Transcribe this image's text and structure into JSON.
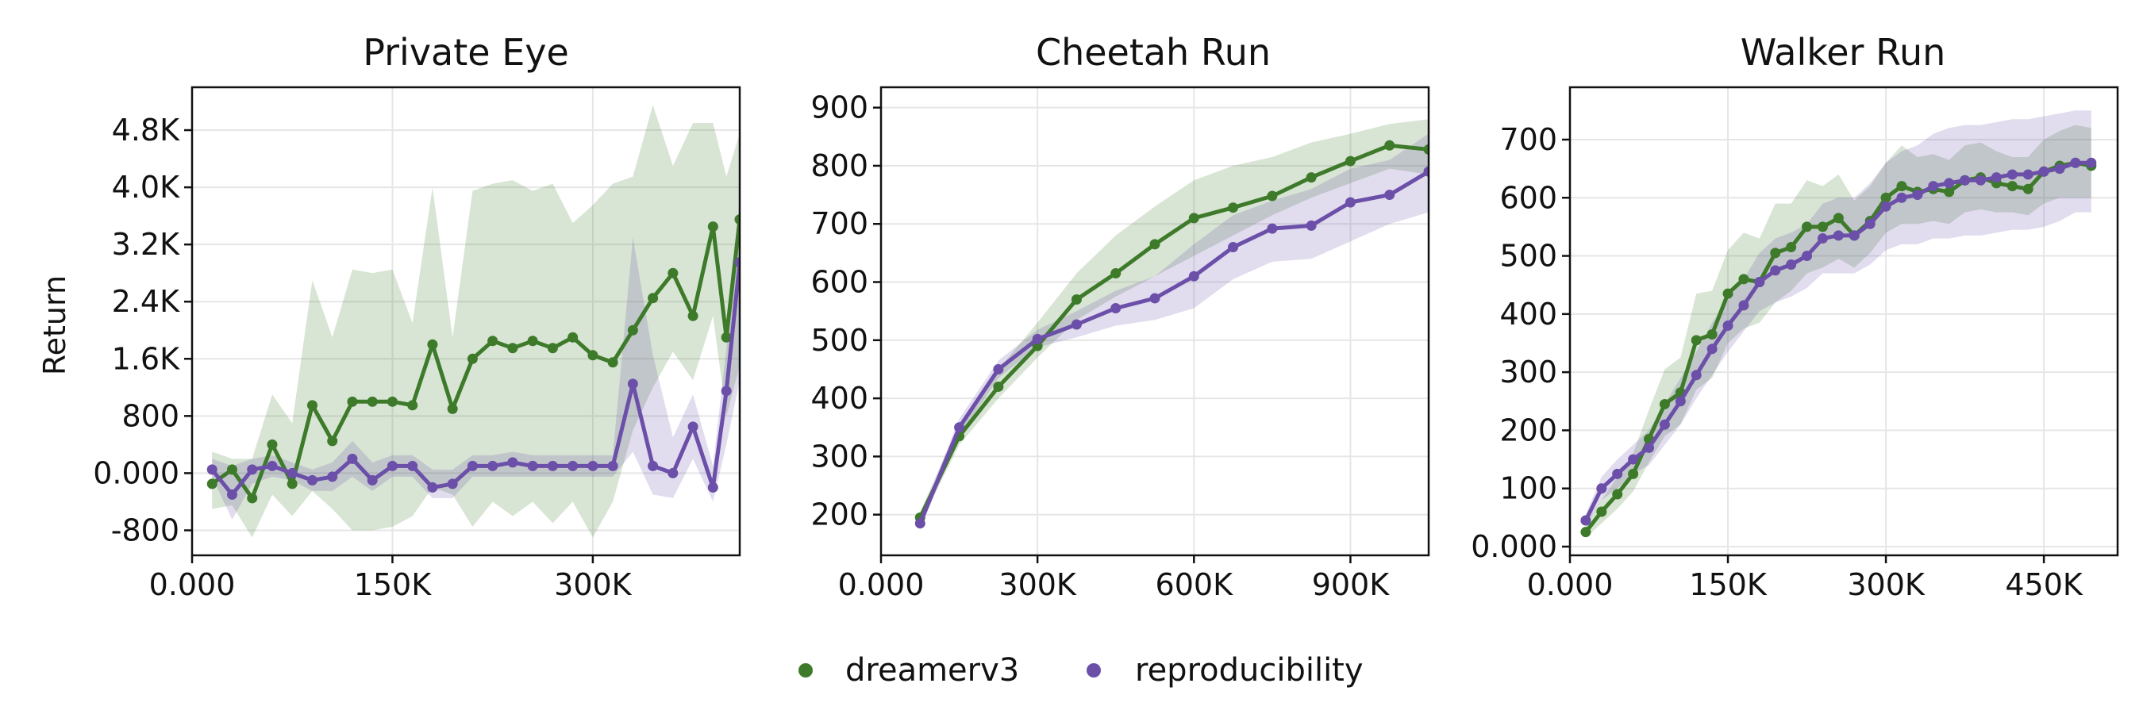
{
  "figure": {
    "colors": {
      "dreamerv3": "#3d7a2a",
      "reproducibility": "#6b4fa8"
    },
    "legend": {
      "placement": "bottom-center",
      "items": [
        {
          "label": "dreamerv3",
          "color": "#3d7a2a"
        },
        {
          "label": "reproducibility",
          "color": "#6b4fa8"
        }
      ]
    }
  },
  "chart_data": [
    {
      "type": "line",
      "title": "Private Eye",
      "ylabel": "Return",
      "xlim": [
        0,
        410000
      ],
      "ylim": [
        -1150,
        5400
      ],
      "xticks": [
        0,
        150000,
        300000
      ],
      "xtick_labels": [
        "0.000",
        "150K",
        "300K"
      ],
      "yticks": [
        -800,
        0,
        800,
        1600,
        2400,
        3200,
        4000,
        4800
      ],
      "ytick_labels": [
        "-800",
        "0.000",
        "800",
        "1.6K",
        "2.4K",
        "3.2K",
        "4.0K",
        "4.8K"
      ],
      "grid": true,
      "x": [
        15000,
        30000,
        45000,
        60000,
        75000,
        90000,
        105000,
        120000,
        135000,
        150000,
        165000,
        180000,
        195000,
        210000,
        225000,
        240000,
        255000,
        270000,
        285000,
        300000,
        315000,
        330000,
        345000,
        360000,
        375000,
        390000,
        405000
      ],
      "series": [
        {
          "name": "dreamerv3",
          "values": [
            -150,
            50,
            -350,
            400,
            -150,
            950,
            450,
            1000,
            1000,
            1000,
            950,
            1800,
            900,
            1600,
            1850,
            1750,
            1850,
            1750,
            1900,
            1650,
            1550,
            2000,
            2450,
            2800,
            2200,
            3450,
            1900,
            3550
          ],
          "x": [
            15000,
            30000,
            45000,
            60000,
            75000,
            90000,
            105000,
            120000,
            135000,
            150000,
            165000,
            180000,
            195000,
            210000,
            225000,
            240000,
            255000,
            270000,
            285000,
            300000,
            315000,
            330000,
            345000,
            360000,
            375000,
            390000,
            400000,
            410000
          ],
          "lower": [
            -500,
            -450,
            -900,
            -300,
            -600,
            -250,
            -500,
            -800,
            -800,
            -750,
            -600,
            -200,
            -300,
            -750,
            -400,
            -600,
            -400,
            -700,
            -400,
            -900,
            -400,
            600,
            1200,
            1700,
            1300,
            2200,
            800,
            1500
          ],
          "upper": [
            300,
            200,
            200,
            1100,
            700,
            2700,
            1900,
            2850,
            2800,
            2850,
            2100,
            4000,
            1900,
            3950,
            4050,
            4100,
            3950,
            4050,
            3500,
            3750,
            4050,
            4150,
            5150,
            4300,
            4900,
            4900,
            4150,
            4750
          ]
        },
        {
          "name": "reproducibility",
          "values": [
            50,
            -300,
            50,
            100,
            0,
            -100,
            -50,
            200,
            -100,
            100,
            100,
            -200,
            -150,
            100,
            100,
            150,
            100,
            100,
            100,
            100,
            100,
            1250,
            100,
            0,
            650,
            -200,
            1150,
            2950
          ],
          "x": [
            15000,
            30000,
            45000,
            60000,
            75000,
            90000,
            105000,
            120000,
            135000,
            150000,
            165000,
            180000,
            195000,
            210000,
            225000,
            240000,
            255000,
            270000,
            285000,
            300000,
            315000,
            330000,
            345000,
            360000,
            375000,
            390000,
            400000,
            410000
          ],
          "lower": [
            -50,
            -650,
            -150,
            -50,
            -100,
            -250,
            -250,
            -50,
            -250,
            -50,
            -50,
            -350,
            -350,
            -50,
            -50,
            -50,
            -50,
            -50,
            -50,
            -50,
            -50,
            300,
            -300,
            -350,
            200,
            -400,
            400,
            1300
          ],
          "upper": [
            200,
            100,
            200,
            250,
            150,
            50,
            150,
            450,
            150,
            250,
            250,
            50,
            50,
            250,
            250,
            300,
            250,
            250,
            250,
            250,
            250,
            3300,
            1650,
            500,
            1100,
            100,
            1750,
            3850
          ]
        }
      ]
    },
    {
      "type": "line",
      "title": "Cheetah Run",
      "xlim": [
        0,
        1050000
      ],
      "ylim": [
        130,
        935
      ],
      "xticks": [
        0,
        300000,
        600000,
        900000
      ],
      "xtick_labels": [
        "0.000",
        "300K",
        "600K",
        "900K"
      ],
      "yticks": [
        200,
        300,
        400,
        500,
        600,
        700,
        800,
        900
      ],
      "ytick_labels": [
        "200",
        "300",
        "400",
        "500",
        "600",
        "700",
        "800",
        "900"
      ],
      "grid": true,
      "series": [
        {
          "name": "dreamerv3",
          "x": [
            75000,
            150000,
            225000,
            300000,
            375000,
            450000,
            525000,
            600000,
            675000,
            750000,
            825000,
            900000,
            975000,
            1050000
          ],
          "values": [
            195,
            335,
            420,
            490,
            570,
            615,
            665,
            710,
            728,
            748,
            780,
            808,
            835,
            828
          ],
          "lower": [
            185,
            320,
            400,
            470,
            535,
            575,
            610,
            645,
            680,
            715,
            745,
            770,
            795,
            785
          ],
          "upper": [
            205,
            355,
            450,
            530,
            615,
            680,
            730,
            775,
            800,
            815,
            840,
            855,
            872,
            880
          ]
        },
        {
          "name": "reproducibility",
          "x": [
            75000,
            150000,
            225000,
            300000,
            375000,
            450000,
            525000,
            600000,
            675000,
            750000,
            825000,
            900000,
            975000,
            1050000
          ],
          "values": [
            185,
            350,
            450,
            502,
            527,
            555,
            572,
            610,
            660,
            692,
            697,
            737,
            750,
            790
          ],
          "lower": [
            175,
            335,
            435,
            488,
            505,
            525,
            535,
            555,
            605,
            635,
            640,
            670,
            700,
            720
          ],
          "upper": [
            195,
            365,
            465,
            518,
            550,
            585,
            610,
            665,
            715,
            740,
            760,
            795,
            810,
            855
          ]
        }
      ]
    },
    {
      "type": "line",
      "title": "Walker Run",
      "xlim": [
        0,
        520000
      ],
      "ylim": [
        -15,
        790
      ],
      "xticks": [
        0,
        150000,
        300000,
        450000
      ],
      "xtick_labels": [
        "0.000",
        "150K",
        "300K",
        "450K"
      ],
      "yticks": [
        0,
        100,
        200,
        300,
        400,
        500,
        600,
        700
      ],
      "ytick_labels": [
        "0.000",
        "100",
        "200",
        "300",
        "400",
        "500",
        "600",
        "700"
      ],
      "grid": true,
      "series": [
        {
          "name": "dreamerv3",
          "x": [
            15000,
            30000,
            45000,
            60000,
            75000,
            90000,
            105000,
            120000,
            135000,
            150000,
            165000,
            180000,
            195000,
            210000,
            225000,
            240000,
            255000,
            270000,
            285000,
            300000,
            315000,
            330000,
            345000,
            360000,
            375000,
            390000,
            405000,
            420000,
            435000,
            450000,
            465000,
            480000,
            495000
          ],
          "values": [
            25,
            60,
            90,
            125,
            185,
            245,
            265,
            355,
            365,
            435,
            460,
            455,
            505,
            515,
            550,
            550,
            565,
            535,
            560,
            600,
            620,
            610,
            615,
            610,
            630,
            635,
            625,
            620,
            615,
            645,
            655,
            660,
            655
          ],
          "lower": [
            15,
            40,
            65,
            95,
            145,
            190,
            210,
            270,
            290,
            350,
            375,
            385,
            420,
            440,
            470,
            480,
            495,
            480,
            505,
            540,
            555,
            555,
            560,
            555,
            575,
            580,
            575,
            575,
            570,
            590,
            600,
            600,
            600
          ],
          "upper": [
            40,
            80,
            120,
            160,
            235,
            305,
            325,
            435,
            440,
            510,
            540,
            530,
            590,
            590,
            630,
            620,
            640,
            595,
            620,
            660,
            690,
            670,
            675,
            665,
            690,
            695,
            680,
            670,
            670,
            700,
            715,
            725,
            720
          ]
        },
        {
          "name": "reproducibility",
          "x": [
            15000,
            30000,
            45000,
            60000,
            75000,
            90000,
            105000,
            120000,
            135000,
            150000,
            165000,
            180000,
            195000,
            210000,
            225000,
            240000,
            255000,
            270000,
            285000,
            300000,
            315000,
            330000,
            345000,
            360000,
            375000,
            390000,
            405000,
            420000,
            435000,
            450000,
            465000,
            480000,
            495000
          ],
          "values": [
            45,
            100,
            125,
            150,
            170,
            210,
            250,
            295,
            340,
            380,
            415,
            455,
            475,
            485,
            500,
            530,
            535,
            535,
            555,
            585,
            600,
            605,
            620,
            625,
            630,
            630,
            635,
            640,
            640,
            645,
            650,
            660,
            660
          ],
          "lower": [
            35,
            80,
            100,
            125,
            140,
            175,
            210,
            255,
            295,
            335,
            370,
            405,
            420,
            430,
            445,
            470,
            470,
            470,
            485,
            510,
            520,
            520,
            530,
            530,
            535,
            535,
            540,
            545,
            545,
            550,
            560,
            575,
            575
          ],
          "upper": [
            55,
            120,
            150,
            175,
            200,
            245,
            290,
            335,
            385,
            425,
            460,
            505,
            530,
            540,
            555,
            590,
            600,
            600,
            625,
            660,
            680,
            690,
            710,
            720,
            725,
            725,
            730,
            735,
            735,
            740,
            745,
            750,
            750
          ]
        }
      ]
    }
  ]
}
